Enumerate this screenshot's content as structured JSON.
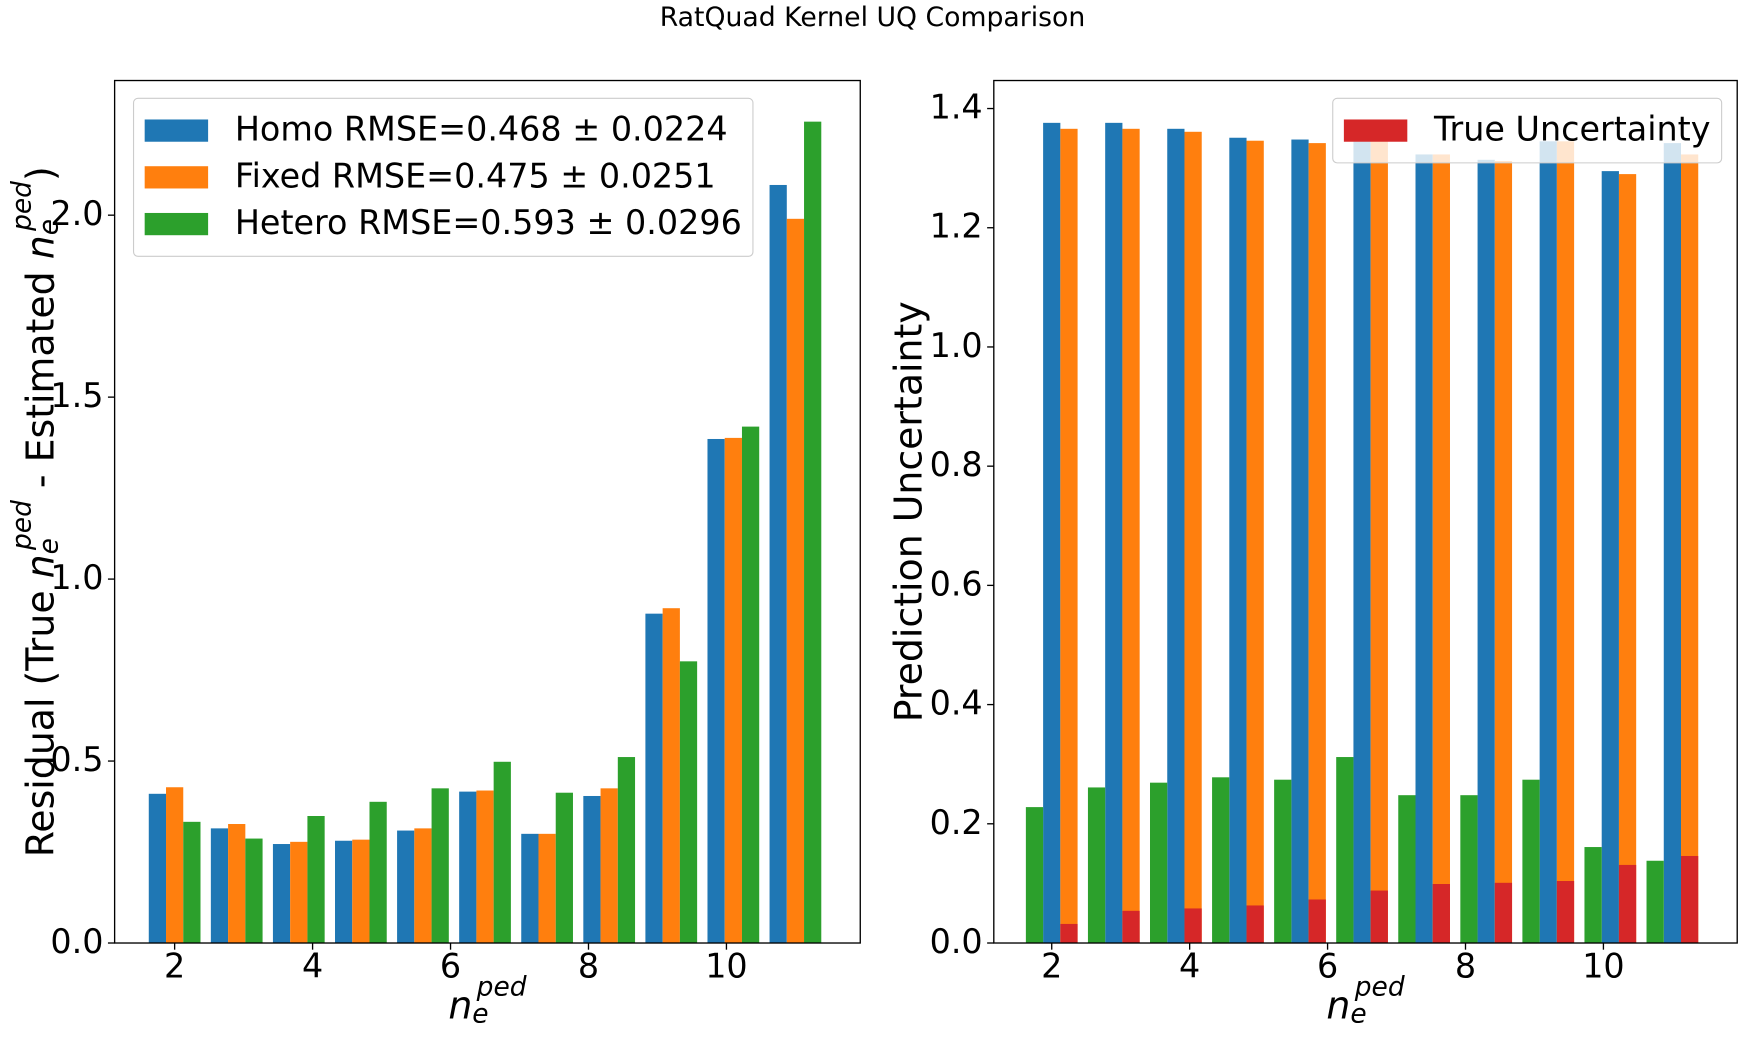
{
  "title": "RatQuad Kernel UQ Comparison",
  "chart_data": [
    {
      "type": "bar",
      "xlabel": "n_e^{ped}",
      "ylabel": "Residual (True n_e^{ped} - Estimated n_e^{ped})",
      "x": [
        2,
        2.9,
        3.8,
        4.7,
        5.6,
        6.5,
        7.4,
        8.3,
        9.2,
        10.1,
        11
      ],
      "series": [
        {
          "name": "Homo RMSE=0.468 ± 0.0224",
          "color": "#1f77b4",
          "values": [
            0.41,
            0.315,
            0.272,
            0.281,
            0.309,
            0.416,
            0.3,
            0.404,
            0.905,
            1.385,
            2.083
          ]
        },
        {
          "name": "Fixed RMSE=0.475 ± 0.0251",
          "color": "#ff7f0e",
          "values": [
            0.428,
            0.327,
            0.278,
            0.284,
            0.315,
            0.419,
            0.3,
            0.425,
            0.92,
            1.388,
            1.99
          ]
        },
        {
          "name": "Hetero RMSE=0.593 ± 0.0296",
          "color": "#2ca02c",
          "values": [
            0.333,
            0.287,
            0.349,
            0.388,
            0.425,
            0.498,
            0.413,
            0.511,
            0.774,
            1.419,
            2.257
          ]
        }
      ],
      "xlim": [
        1.13,
        11.94
      ],
      "xticks": [
        2,
        4,
        6,
        8,
        10
      ],
      "ylim": [
        0,
        2.37
      ],
      "yticks": [
        {
          "value": 0,
          "label": "0.0"
        },
        0.5,
        {
          "value": 1,
          "label": "1.0"
        },
        1.5,
        {
          "value": 2,
          "label": "2.0"
        }
      ],
      "legend": "upper left"
    },
    {
      "type": "bar",
      "xlabel": "n_e^{ped}",
      "ylabel": "Prediction Uncertainty",
      "x": [
        2,
        2.9,
        3.8,
        4.7,
        5.6,
        6.5,
        7.4,
        8.3,
        9.2,
        10.1,
        11
      ],
      "series": [
        {
          "color": "#1f77b4",
          "values": [
            1.376,
            1.376,
            1.366,
            1.351,
            1.348,
            1.36,
            1.323,
            1.314,
            1.345,
            1.295,
            1.342
          ]
        },
        {
          "color": "#ff7f0e",
          "values": [
            1.366,
            1.366,
            1.361,
            1.346,
            1.342,
            1.355,
            1.323,
            1.312,
            1.345,
            1.29,
            1.323
          ]
        },
        {
          "color": "#2ca02c",
          "values": [
            0.228,
            0.261,
            0.269,
            0.278,
            0.274,
            0.312,
            0.248,
            0.248,
            0.274,
            0.161,
            0.138
          ]
        },
        {
          "name": "True Uncertainty",
          "color": "#d62728",
          "values": [
            0.032,
            0.054,
            0.058,
            0.063,
            0.073,
            0.088,
            0.099,
            0.101,
            0.104,
            0.131,
            0.146
          ]
        }
      ],
      "xlim": [
        1.16,
        11.94
      ],
      "xticks": [
        2,
        4,
        6,
        8,
        10
      ],
      "ylim": [
        0,
        1.447
      ],
      "yticks": [
        {
          "value": 0,
          "label": "0.0"
        },
        0.2,
        0.4,
        0.6,
        0.8,
        {
          "value": 1,
          "label": "1.0"
        },
        1.2,
        1.4
      ],
      "legend": "upper right"
    }
  ]
}
